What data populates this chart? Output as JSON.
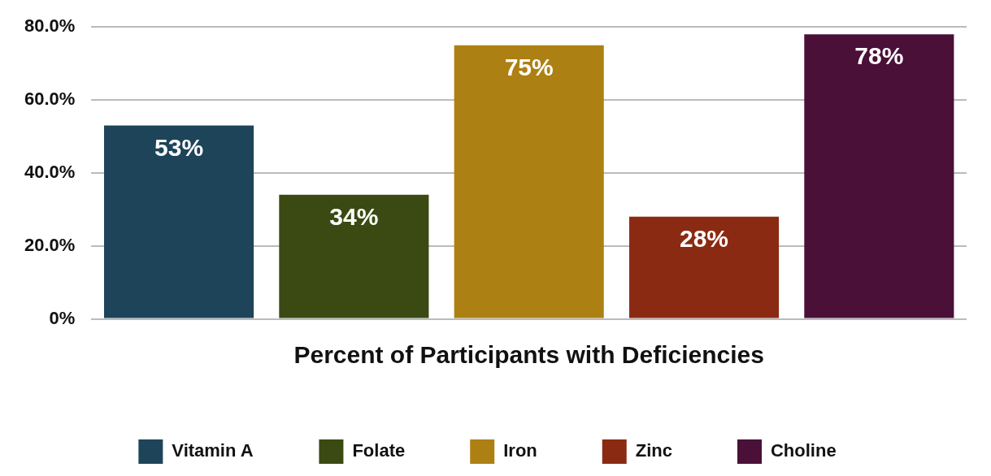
{
  "chart_data": {
    "type": "bar",
    "xlabel": "Percent of Participants with Deficiencies",
    "categories": [
      null,
      null,
      null,
      null,
      null
    ],
    "series": [
      {
        "name": "Vitamin A",
        "color": "#1d4459",
        "values": [
          53,
          null,
          null,
          null,
          null
        ],
        "value_labels": [
          "53%",
          null,
          null,
          null,
          null
        ]
      },
      {
        "name": "Folate",
        "color": "#3a4a12",
        "values": [
          null,
          34,
          null,
          null,
          null
        ],
        "value_labels": [
          null,
          "34%",
          null,
          null,
          null
        ]
      },
      {
        "name": "Iron",
        "color": "#ad8013",
        "values": [
          null,
          null,
          75,
          null,
          null
        ],
        "value_labels": [
          null,
          null,
          "75%",
          null,
          null
        ]
      },
      {
        "name": "Zinc",
        "color": "#8b2a12",
        "values": [
          null,
          null,
          null,
          28,
          null
        ],
        "value_labels": [
          null,
          null,
          null,
          "28%",
          null
        ]
      },
      {
        "name": "Choline",
        "color": "#4a1038",
        "values": [
          null,
          null,
          null,
          null,
          78
        ],
        "value_labels": [
          null,
          null,
          null,
          null,
          "78%"
        ]
      }
    ],
    "ylim": [
      0,
      80
    ],
    "yticks": [
      {
        "value": 0,
        "label": "0%"
      },
      {
        "value": 20,
        "label": "20.0%"
      },
      {
        "value": 40,
        "label": "40.0%"
      },
      {
        "value": 60,
        "label": "60.0%"
      },
      {
        "value": 80,
        "label": "80.0%"
      }
    ],
    "grid": "y",
    "legend": "bottom"
  }
}
